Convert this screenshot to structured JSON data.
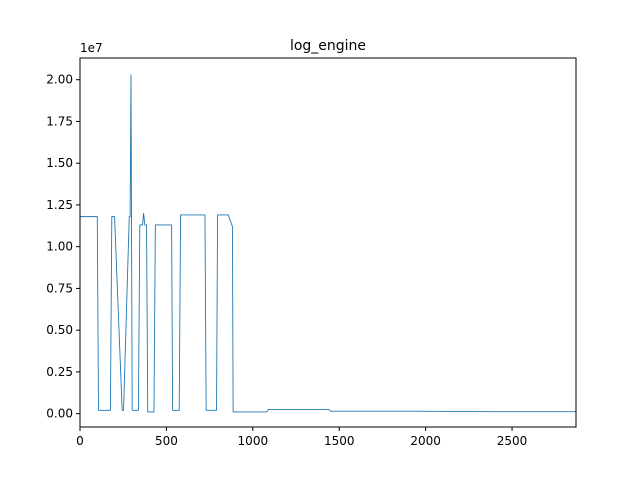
{
  "chart_data": {
    "type": "line",
    "title": "log_engine",
    "xlabel": "",
    "ylabel": "",
    "y_offset_label": "1e7",
    "xlim": [
      0,
      2870
    ],
    "ylim": [
      -0.08,
      2.13
    ],
    "y_scale_multiplier": 10000000,
    "grid": false,
    "legend": "none",
    "x_ticks": [
      0,
      500,
      1000,
      1500,
      2000,
      2500
    ],
    "x_tick_labels": [
      "0",
      "500",
      "1000",
      "1500",
      "2000",
      "2500"
    ],
    "y_ticks": [
      0.0,
      0.25,
      0.5,
      0.75,
      1.0,
      1.25,
      1.5,
      1.75,
      2.0
    ],
    "y_tick_labels": [
      "0.00",
      "0.25",
      "0.50",
      "0.75",
      "1.00",
      "1.25",
      "1.50",
      "1.75",
      "2.00"
    ],
    "series": [
      {
        "color": "#1f77b4",
        "x": [
          0,
          100,
          107,
          112,
          176,
          184,
          200,
          244,
          252,
          285,
          290,
          295,
          302,
          312,
          338,
          346,
          362,
          368,
          375,
          385,
          392,
          405,
          428,
          436,
          486,
          530,
          536,
          568,
          574,
          582,
          588,
          723,
          730,
          736,
          790,
          796,
          822,
          858,
          882,
          886,
          890,
          950,
          1000,
          1080,
          1090,
          1240,
          1440,
          1450,
          1900,
          2400,
          2870
        ],
        "y": [
          1.18,
          1.18,
          0.02,
          0.02,
          0.02,
          1.18,
          1.18,
          0.02,
          0.02,
          1.18,
          1.18,
          2.03,
          0.02,
          0.02,
          0.02,
          1.13,
          1.13,
          1.2,
          1.13,
          1.13,
          0.01,
          0.01,
          0.01,
          1.13,
          1.13,
          1.13,
          0.02,
          0.02,
          0.02,
          1.19,
          1.19,
          1.19,
          0.02,
          0.02,
          0.02,
          1.19,
          1.19,
          1.19,
          1.12,
          0.01,
          0.01,
          0.01,
          0.01,
          0.01,
          0.025,
          0.025,
          0.025,
          0.015,
          0.015,
          0.012,
          0.012
        ]
      }
    ]
  }
}
